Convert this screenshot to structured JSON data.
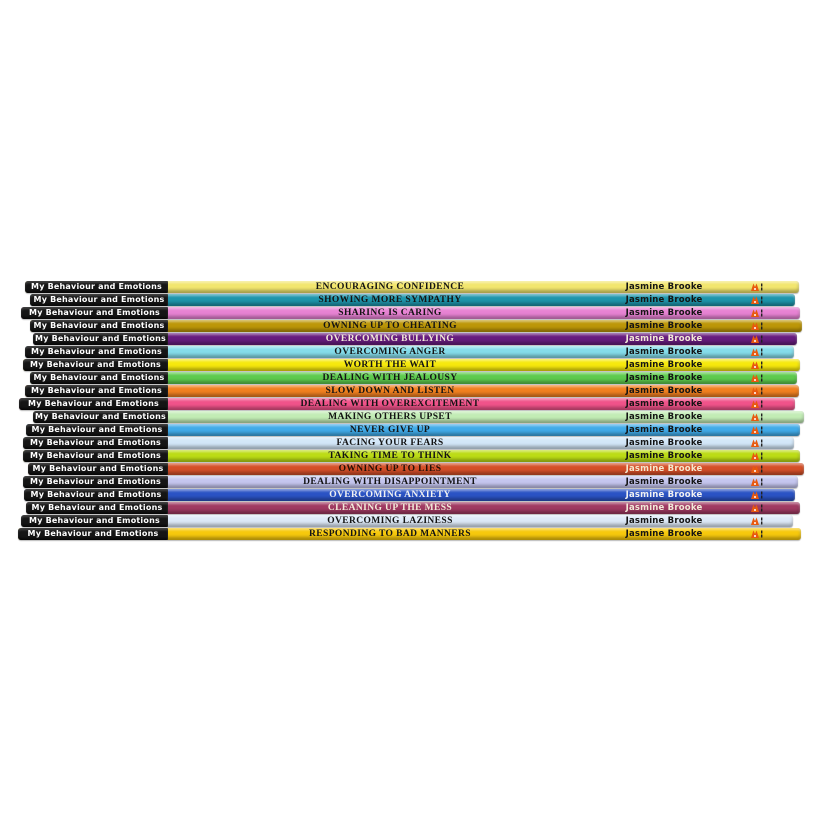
{
  "series": {
    "label": "My Behaviour and Emotions",
    "author": "Jasmine Brooke"
  },
  "palette": {
    "page_background": "#ffffff",
    "label_background": "#151515",
    "label_text": "#ffffff",
    "default_text": "#141414",
    "logo_accent": "#e8590f"
  },
  "books": [
    {
      "title": "ENCOURAGING CONFIDENCE",
      "color": "#f2e66e",
      "title_color": "#141414",
      "author_color": "#141414"
    },
    {
      "title": "SHOWING MORE SYMPATHY",
      "color": "#1e95ab",
      "title_color": "#141414",
      "author_color": "#141414"
    },
    {
      "title": "SHARING IS CARING",
      "color": "#e783d3",
      "title_color": "#141414",
      "author_color": "#141414"
    },
    {
      "title": "OWNING UP TO CHEATING",
      "color": "#bd9708",
      "title_color": "#141414",
      "author_color": "#141414"
    },
    {
      "title": "OVERCOMING BULLYING",
      "color": "#671c7e",
      "title_color": "#f2ead8",
      "author_color": "#f2ead8"
    },
    {
      "title": "OVERCOMING ANGER",
      "color": "#85dcea",
      "title_color": "#141414",
      "author_color": "#141414"
    },
    {
      "title": "WORTH THE WAIT",
      "color": "#f6e90d",
      "title_color": "#141414",
      "author_color": "#141414"
    },
    {
      "title": "DEALING WITH JEALOUSY",
      "color": "#5ecb4e",
      "title_color": "#141414",
      "author_color": "#141414"
    },
    {
      "title": "SLOW DOWN AND LISTEN",
      "color": "#f08020",
      "title_color": "#141414",
      "author_color": "#141414"
    },
    {
      "title": "DEALING WITH OVEREXCITEMENT",
      "color": "#f0538a",
      "title_color": "#141414",
      "author_color": "#141414"
    },
    {
      "title": "MAKING OTHERS UPSET",
      "color": "#c2ecb5",
      "title_color": "#141414",
      "author_color": "#141414"
    },
    {
      "title": "NEVER GIVE UP",
      "color": "#41abe8",
      "title_color": "#141414",
      "author_color": "#141414"
    },
    {
      "title": "FACING YOUR FEARS",
      "color": "#d3e7f8",
      "title_color": "#141414",
      "author_color": "#141414"
    },
    {
      "title": "TAKING TIME TO THINK",
      "color": "#bcdc16",
      "title_color": "#141414",
      "author_color": "#141414"
    },
    {
      "title": "OWNING UP TO LIES",
      "color": "#d44f28",
      "title_color": "#241008",
      "author_color": "#f5e9d0"
    },
    {
      "title": "DEALING WITH DISAPPOINTMENT",
      "color": "#c5c6ef",
      "title_color": "#141414",
      "author_color": "#141414"
    },
    {
      "title": "OVERCOMING ANXIETY",
      "color": "#2b53c4",
      "title_color": "#f2f2f2",
      "author_color": "#f2f2f2"
    },
    {
      "title": "CLEANING UP THE MESS",
      "color": "#a03a62",
      "title_color": "#f2ead8",
      "author_color": "#f2ead8"
    },
    {
      "title": "OVERCOMING LAZINESS",
      "color": "#dde9f7",
      "title_color": "#141414",
      "author_color": "#141414"
    },
    {
      "title": "RESPONDING TO BAD MANNERS",
      "color": "#f7c90d",
      "title_color": "#141414",
      "author_color": "#141414"
    }
  ]
}
